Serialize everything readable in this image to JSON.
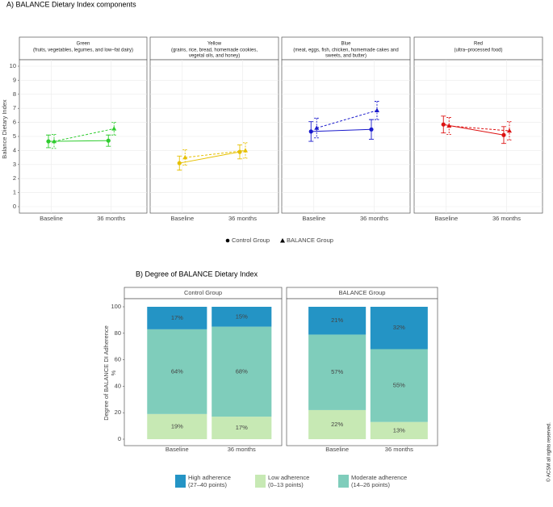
{
  "chart_data": [
    {
      "type": "line",
      "title": "A) BALANCE Dietary Index components",
      "y_label": "Balance Dietary Index",
      "ylim": [
        0,
        10
      ],
      "yticks": [
        0,
        1,
        2,
        3,
        4,
        5,
        6,
        7,
        8,
        9,
        10
      ],
      "grid": true,
      "categories": [
        "Baseline",
        "36 months"
      ],
      "series": [
        {
          "name": "Control Group",
          "marker": "circle",
          "dashed": false
        },
        {
          "name": "BALANCE Group",
          "marker": "triangle",
          "dashed": true
        }
      ],
      "legend": "bottom",
      "facets": [
        {
          "title": "Green",
          "subtitle": [
            "(fruits, vegetables, legumes, and low–fat dairy)"
          ],
          "color": "#2ecc2e",
          "series": [
            {
              "values": [
                4.65,
                4.7
              ],
              "errors": [
                0.45,
                0.4
              ]
            },
            {
              "values": [
                4.65,
                5.55
              ],
              "errors": [
                0.5,
                0.45
              ]
            }
          ]
        },
        {
          "title": "Yellow",
          "subtitle": [
            "(grains, rice, bread, homemade cookies,",
            "vegetal oils, and honey)"
          ],
          "color": "#e6c000",
          "series": [
            {
              "values": [
                3.1,
                3.9
              ],
              "errors": [
                0.5,
                0.5
              ]
            },
            {
              "values": [
                3.5,
                4.0
              ],
              "errors": [
                0.55,
                0.55
              ]
            }
          ]
        },
        {
          "title": "Blue",
          "subtitle": [
            "(meat, eggs, fish, chicken, homemade cakes and",
            "sweets, and butter)"
          ],
          "color": "#1a1acc",
          "series": [
            {
              "values": [
                5.35,
                5.5
              ],
              "errors": [
                0.7,
                0.7
              ]
            },
            {
              "values": [
                5.6,
                6.85
              ],
              "errors": [
                0.7,
                0.65
              ]
            }
          ]
        },
        {
          "title": "Red",
          "subtitle": [
            "(ultra–processed food)"
          ],
          "color": "#dd1111",
          "series": [
            {
              "values": [
                5.85,
                5.1
              ],
              "errors": [
                0.6,
                0.6
              ]
            },
            {
              "values": [
                5.75,
                5.4
              ],
              "errors": [
                0.6,
                0.65
              ]
            }
          ]
        }
      ]
    },
    {
      "type": "stacked_bar",
      "title": "B) Degree of BALANCE Dietary Index",
      "y_label": [
        "Degree of BALANCE DI Adherence",
        "%"
      ],
      "ylim": [
        0,
        100
      ],
      "yticks": [
        0,
        20,
        40,
        60,
        80,
        100
      ],
      "categories": [
        "Baseline",
        "36 months"
      ],
      "legend": "bottom",
      "series": [
        {
          "name": "Low adherence",
          "range": "(0–13 points)",
          "color": "#c7e9b4"
        },
        {
          "name": "Moderate adherence",
          "range": "(14–26 points)",
          "color": "#7fcdbb"
        },
        {
          "name": "High adherence",
          "range": "(27–40 points)",
          "color": "#2494c5"
        }
      ],
      "facets": [
        {
          "title": "Control Group",
          "values": [
            [
              19,
              17
            ],
            [
              64,
              68
            ],
            [
              17,
              15
            ]
          ],
          "value_labels": [
            [
              "19%",
              "17%"
            ],
            [
              "64%",
              "68%"
            ],
            [
              "17%",
              "15%"
            ]
          ]
        },
        {
          "title": "BALANCE Group",
          "values": [
            [
              22,
              13
            ],
            [
              57,
              55
            ],
            [
              21,
              32
            ]
          ],
          "value_labels": [
            [
              "22%",
              "13%"
            ],
            [
              "57%",
              "55%"
            ],
            [
              "21%",
              "32%"
            ]
          ]
        }
      ]
    },
    {
      "type": "note",
      "copyright": "© ACSM all rights reserved."
    }
  ]
}
